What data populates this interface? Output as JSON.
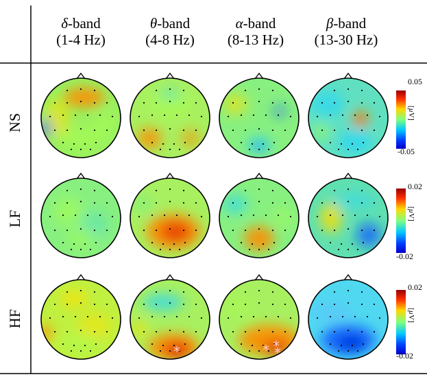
{
  "columns": [
    {
      "symbol": "δ",
      "band": "-band",
      "range": "(1-4 Hz)"
    },
    {
      "symbol": "θ",
      "band": "-band",
      "range": "(4-8 Hz)"
    },
    {
      "symbol": "α",
      "band": "-band",
      "range": "(8-13 Hz)"
    },
    {
      "symbol": "β",
      "band": "-band",
      "range": "(13-30 Hz)"
    }
  ],
  "rows": [
    {
      "label": "NS",
      "cb_max": "0.05",
      "cb_min": "-0.05"
    },
    {
      "label": "LF",
      "cb_max": "0.02",
      "cb_min": "-0.02"
    },
    {
      "label": "HF",
      "cb_max": "0.02",
      "cb_min": "-0.02"
    }
  ],
  "unit_prefix": "[",
  "unit_mu": "µ",
  "unit_suffix": "V]",
  "colors": {
    "line": "#000000",
    "head_outline": "#000000",
    "significance_marker": "#ffcccc"
  }
}
